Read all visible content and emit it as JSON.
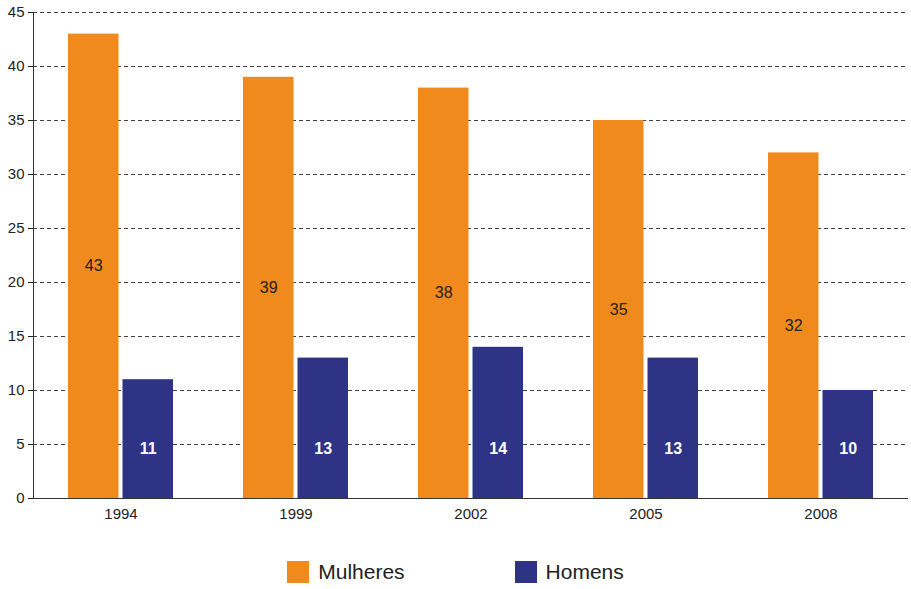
{
  "chart_data": {
    "type": "bar",
    "categories": [
      "1994",
      "1999",
      "2002",
      "2005",
      "2008"
    ],
    "series": [
      {
        "name": "Mulheres",
        "color": "#f08a1d",
        "values": [
          43,
          39,
          38,
          35,
          32
        ]
      },
      {
        "name": "Homens",
        "color": "#2e3386",
        "values": [
          11,
          13,
          14,
          13,
          10
        ]
      }
    ],
    "ylim": [
      0,
      45
    ],
    "yticks": [
      0,
      5,
      10,
      15,
      20,
      25,
      30,
      35,
      40,
      45
    ],
    "grid": true,
    "data_labels": true,
    "legend": "bottom"
  }
}
